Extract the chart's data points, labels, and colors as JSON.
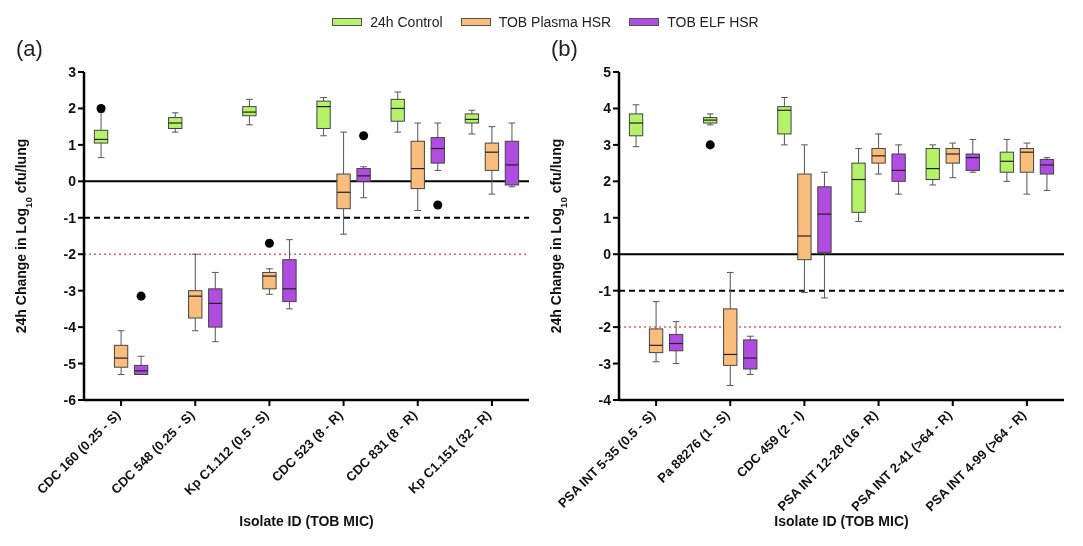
{
  "chart_data": [
    {
      "type": "box",
      "title": "(a)",
      "xlabel": "Isolate ID (TOB MIC)",
      "ylabel": "24h Change in Log$_{10}$ cfu/lung",
      "legend": "top",
      "grid": false,
      "categories": [
        "CDC 160 (0.25 - S)",
        "CDC 548 (0.25 - S)",
        "Kp C1.112 (0.5 - S)",
        "CDC 523 (8 - R)",
        "CDC 831 (8 - R)",
        "Kp C1.151 (32 - R)"
      ],
      "ylim": [
        -6,
        3
      ],
      "yticks": [
        -6,
        -5,
        -4,
        -3,
        -2,
        -1,
        0,
        1,
        2,
        3
      ],
      "ref_lines": [
        {
          "axis": "y",
          "value": 0,
          "color": "#000000",
          "line_style": "solid"
        },
        {
          "axis": "y",
          "value": -1,
          "color": "#000000",
          "line_style": "dashed"
        },
        {
          "axis": "y",
          "value": -2,
          "color": "#e06060",
          "line_style": "dotted"
        }
      ],
      "series": [
        {
          "name": "24h Control",
          "color": "#b5f26a",
          "boxes": [
            {
              "low": 0.65,
              "q1": 1.05,
              "median": 1.15,
              "q3": 1.4,
              "high": 1.9,
              "outliers": [
                2.0
              ]
            },
            {
              "low": 1.35,
              "q1": 1.45,
              "median": 1.6,
              "q3": 1.75,
              "high": 1.88
            },
            {
              "low": 1.55,
              "q1": 1.8,
              "median": 1.9,
              "q3": 2.05,
              "high": 2.25
            },
            {
              "low": 1.25,
              "q1": 1.45,
              "median": 2.05,
              "q3": 2.2,
              "high": 2.3
            },
            {
              "low": 1.35,
              "q1": 1.65,
              "median": 2.0,
              "q3": 2.25,
              "high": 2.45
            },
            {
              "low": 1.3,
              "q1": 1.6,
              "median": 1.7,
              "q3": 1.85,
              "high": 1.95
            }
          ]
        },
        {
          "name": "TOB Plasma HSR",
          "color": "#f9bd7d",
          "boxes": [
            {
              "low": -5.3,
              "q1": -5.1,
              "median": -4.85,
              "q3": -4.5,
              "high": -4.1
            },
            {
              "low": -4.1,
              "q1": -3.75,
              "median": -3.15,
              "q3": -3.0,
              "high": -2.0
            },
            {
              "low": -3.1,
              "q1": -2.95,
              "median": -2.6,
              "q3": -2.5,
              "high": -2.4,
              "outliers": [
                -1.7
              ]
            },
            {
              "low": -1.45,
              "q1": -0.75,
              "median": -0.3,
              "q3": 0.2,
              "high": 1.35
            },
            {
              "low": -0.8,
              "q1": -0.2,
              "median": 0.35,
              "q3": 1.1,
              "high": 1.6
            },
            {
              "low": -0.35,
              "q1": 0.3,
              "median": 0.8,
              "q3": 1.05,
              "high": 1.5
            }
          ]
        },
        {
          "name": "TOB ELF HSR",
          "color": "#b04de0",
          "boxes": [
            {
              "low": -5.3,
              "q1": -5.3,
              "median": -5.2,
              "q3": -5.05,
              "high": -4.8,
              "outliers": [
                -3.15
              ]
            },
            {
              "low": -4.4,
              "q1": -4.0,
              "median": -3.35,
              "q3": -2.95,
              "high": -2.5
            },
            {
              "low": -3.5,
              "q1": -3.3,
              "median": -2.95,
              "q3": -2.15,
              "high": -1.6
            },
            {
              "low": -0.45,
              "q1": 0.0,
              "median": 0.15,
              "q3": 0.35,
              "high": 0.4,
              "outliers": [
                1.25
              ]
            },
            {
              "low": 0.3,
              "q1": 0.5,
              "median": 0.9,
              "q3": 1.2,
              "high": 1.6,
              "outliers": [
                -0.65
              ]
            },
            {
              "low": -0.15,
              "q1": -0.1,
              "median": 0.45,
              "q3": 1.1,
              "high": 1.6
            }
          ]
        }
      ]
    },
    {
      "type": "box",
      "title": "(b)",
      "xlabel": "Isolate ID (TOB MIC)",
      "ylabel": "24h Change in Log$_{10}$ cfu/lung",
      "grid": false,
      "categories": [
        "PSA INT 5-35 (0.5 - S)",
        "Pa 88276 (1 - S)",
        "CDC 459 (2 - I)",
        "PSA INT 12-28 (16 - R)",
        "PSA INT 2-41 (>64 - R)",
        "PSA INT 4-99 (>64 - R)"
      ],
      "ylim": [
        -4,
        5
      ],
      "yticks": [
        -4,
        -3,
        -2,
        -1,
        0,
        1,
        2,
        3,
        4,
        5
      ],
      "ref_lines": [
        {
          "axis": "y",
          "value": 0,
          "color": "#000000",
          "line_style": "solid"
        },
        {
          "axis": "y",
          "value": -1,
          "color": "#000000",
          "line_style": "dashed"
        },
        {
          "axis": "y",
          "value": -2,
          "color": "#e06060",
          "line_style": "dotted"
        }
      ],
      "series": [
        {
          "color": "#b5f26a",
          "boxes": [
            {
              "low": 2.95,
              "q1": 3.25,
              "median": 3.6,
              "q3": 3.85,
              "high": 4.1
            },
            {
              "low": 3.55,
              "q1": 3.6,
              "median": 3.68,
              "q3": 3.75,
              "high": 3.85,
              "outliers": [
                3.0
              ]
            },
            {
              "low": 3.0,
              "q1": 3.3,
              "median": 3.95,
              "q3": 4.05,
              "high": 4.3
            },
            {
              "low": 0.9,
              "q1": 1.15,
              "median": 2.05,
              "q3": 2.5,
              "high": 2.9
            },
            {
              "low": 1.9,
              "q1": 2.05,
              "median": 2.35,
              "q3": 2.9,
              "high": 3.0
            },
            {
              "low": 2.0,
              "q1": 2.25,
              "median": 2.55,
              "q3": 2.8,
              "high": 3.15
            }
          ]
        },
        {
          "color": "#f9bd7d",
          "boxes": [
            {
              "low": -2.95,
              "q1": -2.7,
              "median": -2.5,
              "q3": -2.05,
              "high": -1.3
            },
            {
              "low": -3.6,
              "q1": -3.05,
              "median": -2.75,
              "q3": -1.5,
              "high": -0.5
            },
            {
              "low": -1.05,
              "q1": -0.15,
              "median": 0.5,
              "q3": 2.2,
              "high": 3.0
            },
            {
              "low": 2.2,
              "q1": 2.5,
              "median": 2.7,
              "q3": 2.9,
              "high": 3.3
            },
            {
              "low": 2.1,
              "q1": 2.5,
              "median": 2.75,
              "q3": 2.9,
              "high": 3.05
            },
            {
              "low": 1.65,
              "q1": 2.25,
              "median": 2.8,
              "q3": 2.9,
              "high": 3.05
            }
          ]
        },
        {
          "color": "#b04de0",
          "boxes": [
            {
              "low": -3.0,
              "q1": -2.65,
              "median": -2.45,
              "q3": -2.2,
              "high": -1.85
            },
            {
              "low": -3.3,
              "q1": -3.15,
              "median": -2.85,
              "q3": -2.35,
              "high": -2.25
            },
            {
              "low": -1.2,
              "q1": 0.05,
              "median": 1.1,
              "q3": 1.85,
              "high": 2.25
            },
            {
              "low": 1.65,
              "q1": 2.0,
              "median": 2.3,
              "q3": 2.75,
              "high": 3.0
            },
            {
              "low": 2.25,
              "q1": 2.3,
              "median": 2.65,
              "q3": 2.75,
              "high": 3.15
            },
            {
              "low": 1.75,
              "q1": 2.2,
              "median": 2.45,
              "q3": 2.6,
              "high": 2.65
            }
          ]
        }
      ]
    }
  ]
}
